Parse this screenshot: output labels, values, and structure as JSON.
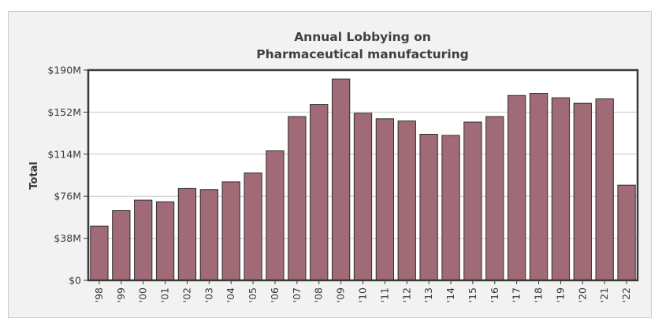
{
  "chart_data": {
    "type": "bar",
    "title_lines": [
      "Annual Lobbying on",
      "Pharmaceutical manufacturing"
    ],
    "xlabel": "",
    "ylabel": "Total",
    "categories": [
      "'98",
      "'99",
      "'00",
      "'01",
      "'02",
      "'03",
      "'04",
      "'05",
      "'06",
      "'07",
      "'08",
      "'09",
      "'10",
      "'11",
      "'12",
      "'13",
      "'14",
      "'15",
      "'16",
      "'17",
      "'18",
      "'19",
      "'20",
      "'21",
      "'22"
    ],
    "values": [
      49,
      63,
      72.5,
      71,
      83,
      82,
      89,
      97,
      117,
      148,
      159,
      182,
      151,
      146,
      144,
      132,
      131,
      143,
      148,
      167,
      169,
      165,
      160,
      164,
      86
    ],
    "value_unit": "millions USD",
    "ylim": [
      0,
      190
    ],
    "yticks": [
      0,
      38,
      76,
      114,
      152,
      190
    ],
    "ytick_labels": [
      "$0",
      "$38M",
      "$76M",
      "$114M",
      "$152M",
      "$190M"
    ],
    "grid": true,
    "colors": {
      "bar": "#a06b77",
      "bar_stroke": "#2e2e2e",
      "plot_bg": "#ffffff",
      "grid": "#c8c8c8",
      "axis": "#3a3a3a"
    }
  }
}
